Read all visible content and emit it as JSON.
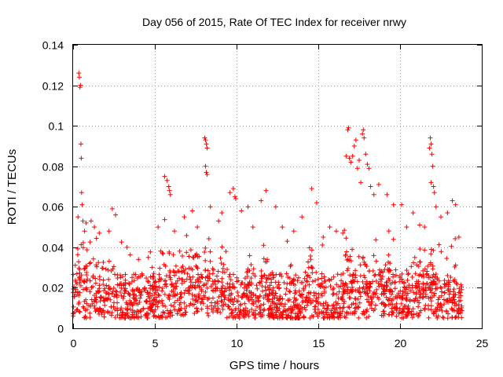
{
  "chart_data": {
    "type": "scatter",
    "title": "Day 056 of 2015, Rate Of TEC Index for receiver nrwy",
    "xlabel": "GPS time / hours",
    "ylabel": "ROTI / TECUs",
    "xlim": [
      0,
      25
    ],
    "ylim": [
      0,
      0.14
    ],
    "xticks": [
      0,
      5,
      10,
      15,
      20,
      25
    ],
    "yticks": [
      0,
      0.02,
      0.04,
      0.06,
      0.08,
      0.1,
      0.12,
      0.14
    ],
    "xtick_labels": [
      "0",
      "5",
      "10",
      "15",
      "20",
      "25"
    ],
    "ytick_labels": [
      "0",
      "0.02",
      "0.04",
      "0.06",
      "0.08",
      "0.1",
      "0.12",
      "0.14"
    ],
    "grid": true,
    "marker": "+",
    "series_color": "#ff0000",
    "series": [
      {
        "name": "ROTI",
        "points": [
          [
            0.35,
            0.126
          ],
          [
            0.38,
            0.124
          ],
          [
            0.45,
            0.12
          ],
          [
            0.42,
            0.119
          ],
          [
            0.48,
            0.091
          ],
          [
            0.5,
            0.084
          ],
          [
            0.52,
            0.067
          ],
          [
            0.55,
            0.061
          ],
          [
            0.3,
            0.055
          ],
          [
            0.6,
            0.053
          ],
          [
            0.7,
            0.048
          ],
          [
            0.8,
            0.052
          ],
          [
            1.1,
            0.053
          ],
          [
            1.3,
            0.05
          ],
          [
            1.6,
            0.047
          ],
          [
            2.2,
            0.048
          ],
          [
            2.4,
            0.059
          ],
          [
            2.6,
            0.056
          ],
          [
            3.3,
            0.04
          ],
          [
            4.0,
            0.034
          ],
          [
            4.6,
            0.035
          ],
          [
            5.2,
            0.05
          ],
          [
            5.6,
            0.075
          ],
          [
            5.75,
            0.073
          ],
          [
            5.85,
            0.07
          ],
          [
            5.9,
            0.068
          ],
          [
            5.95,
            0.066
          ],
          [
            6.2,
            0.048
          ],
          [
            6.8,
            0.055
          ],
          [
            7.3,
            0.058
          ],
          [
            7.6,
            0.05
          ],
          [
            8.05,
            0.094
          ],
          [
            8.1,
            0.093
          ],
          [
            8.15,
            0.091
          ],
          [
            8.2,
            0.089
          ],
          [
            8.1,
            0.08
          ],
          [
            8.15,
            0.077
          ],
          [
            8.2,
            0.076
          ],
          [
            8.4,
            0.06
          ],
          [
            8.9,
            0.053
          ],
          [
            9.1,
            0.057
          ],
          [
            9.6,
            0.067
          ],
          [
            9.8,
            0.069
          ],
          [
            9.9,
            0.065
          ],
          [
            9.95,
            0.064
          ],
          [
            10.3,
            0.058
          ],
          [
            10.7,
            0.06
          ],
          [
            11.0,
            0.05
          ],
          [
            11.5,
            0.063
          ],
          [
            11.8,
            0.068
          ],
          [
            12.4,
            0.06
          ],
          [
            12.8,
            0.05
          ],
          [
            13.1,
            0.043
          ],
          [
            13.5,
            0.048
          ],
          [
            14.0,
            0.055
          ],
          [
            14.6,
            0.069
          ],
          [
            14.9,
            0.062
          ],
          [
            15.3,
            0.045
          ],
          [
            15.7,
            0.05
          ],
          [
            16.1,
            0.048
          ],
          [
            16.5,
            0.047
          ],
          [
            16.7,
            0.085
          ],
          [
            16.8,
            0.098
          ],
          [
            16.85,
            0.099
          ],
          [
            16.9,
            0.084
          ],
          [
            17.0,
            0.082
          ],
          [
            17.1,
            0.085
          ],
          [
            17.2,
            0.09
          ],
          [
            17.3,
            0.093
          ],
          [
            17.4,
            0.079
          ],
          [
            17.5,
            0.083
          ],
          [
            17.6,
            0.072
          ],
          [
            17.7,
            0.096
          ],
          [
            17.75,
            0.098
          ],
          [
            17.8,
            0.094
          ],
          [
            17.9,
            0.086
          ],
          [
            18.0,
            0.081
          ],
          [
            18.1,
            0.079
          ],
          [
            18.2,
            0.07
          ],
          [
            18.4,
            0.066
          ],
          [
            18.7,
            0.071
          ],
          [
            19.2,
            0.066
          ],
          [
            19.6,
            0.061
          ],
          [
            20.1,
            0.061
          ],
          [
            20.4,
            0.05
          ],
          [
            20.8,
            0.057
          ],
          [
            21.2,
            0.051
          ],
          [
            21.5,
            0.05
          ],
          [
            21.8,
            0.089
          ],
          [
            21.85,
            0.094
          ],
          [
            21.9,
            0.091
          ],
          [
            21.95,
            0.086
          ],
          [
            22.0,
            0.08
          ],
          [
            21.9,
            0.072
          ],
          [
            22.05,
            0.07
          ],
          [
            22.1,
            0.067
          ],
          [
            22.2,
            0.06
          ],
          [
            22.5,
            0.055
          ],
          [
            22.9,
            0.057
          ],
          [
            23.2,
            0.063
          ],
          [
            23.4,
            0.061
          ],
          [
            23.6,
            0.045
          ]
        ]
      }
    ],
    "dense_background": "approximately 1800 additional points between 0.003 and 0.045 spanning x = 0 to 23.8, concentrated between 0.005 and 0.025"
  }
}
